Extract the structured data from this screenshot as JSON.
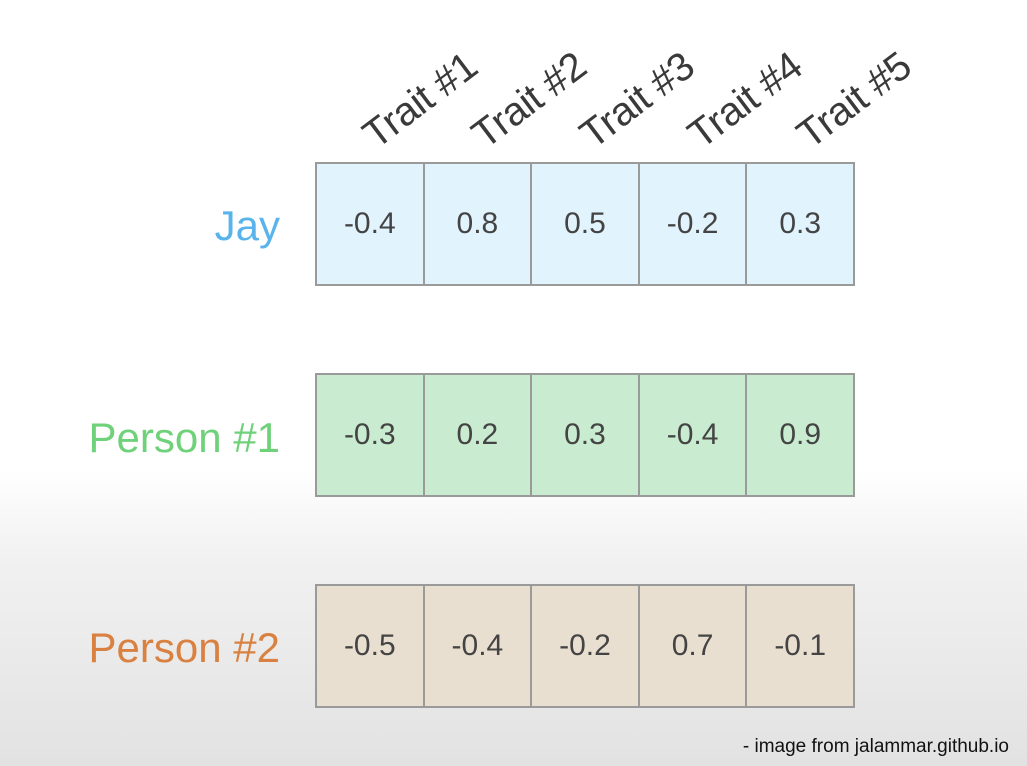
{
  "traits": [
    "Trait #1",
    "Trait #2",
    "Trait #3",
    "Trait #4",
    "Trait #5"
  ],
  "rows": [
    {
      "label": "Jay",
      "label_color": "#5ab4ec",
      "cell_color": "#e1f4fd",
      "values": [
        "-0.4",
        "0.8",
        "0.5",
        "-0.2",
        "0.3"
      ]
    },
    {
      "label": "Person #1",
      "label_color": "#6fd17a",
      "cell_color": "#c9ecd0",
      "values": [
        "-0.3",
        "0.2",
        "0.3",
        "-0.4",
        "0.9"
      ]
    },
    {
      "label": "Person #2",
      "label_color": "#d98140",
      "cell_color": "#e8dfd0",
      "values": [
        "-0.5",
        "-0.4",
        "-0.2",
        "0.7",
        "-0.1"
      ]
    }
  ],
  "credit": "- image from jalammar.github.io"
}
